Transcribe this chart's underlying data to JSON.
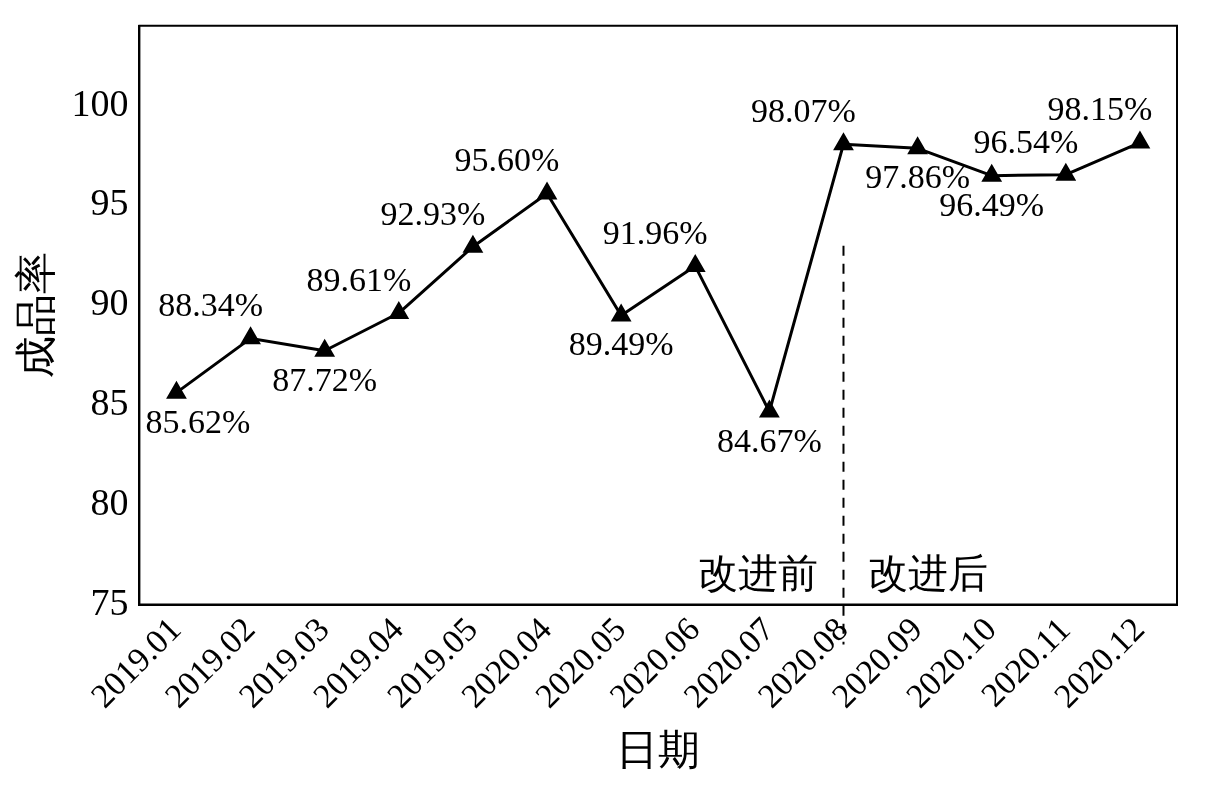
{
  "chart_data": {
    "type": "line",
    "xlabel": "日期",
    "ylabel": "成品率",
    "categories": [
      "2019.01",
      "2019.02",
      "2019.03",
      "2019.04",
      "2019.05",
      "2020.04",
      "2020.05",
      "2020.06",
      "2020.07",
      "2020.08",
      "2020.09",
      "2020.10",
      "2020.11",
      "2020.12"
    ],
    "series": [
      {
        "color": "#000000",
        "values": [
          85.62,
          88.34,
          87.72,
          89.61,
          92.93,
          95.6,
          89.49,
          91.96,
          84.67,
          98.07,
          97.86,
          96.49,
          96.54,
          98.15
        ],
        "value_labels": [
          "85.62%",
          "88.34%",
          "87.72%",
          "89.61%",
          "92.93%",
          "95.60%",
          "89.49%",
          "91.96%",
          "84.67%",
          "98.07%",
          "97.86%",
          "96.49%",
          "96.54%",
          "98.15%"
        ]
      }
    ],
    "ylim": [
      75,
      104
    ],
    "yticks": [
      75,
      80,
      85,
      90,
      95,
      100
    ],
    "grid": false,
    "legend": false,
    "marker": "triangle",
    "line_style": "solid",
    "ref_lines": [
      {
        "axis": "x",
        "value": "2020.08",
        "line_style": "dashed",
        "color": "#000000"
      }
    ],
    "annotations": [
      "改进前",
      "改进后"
    ]
  }
}
